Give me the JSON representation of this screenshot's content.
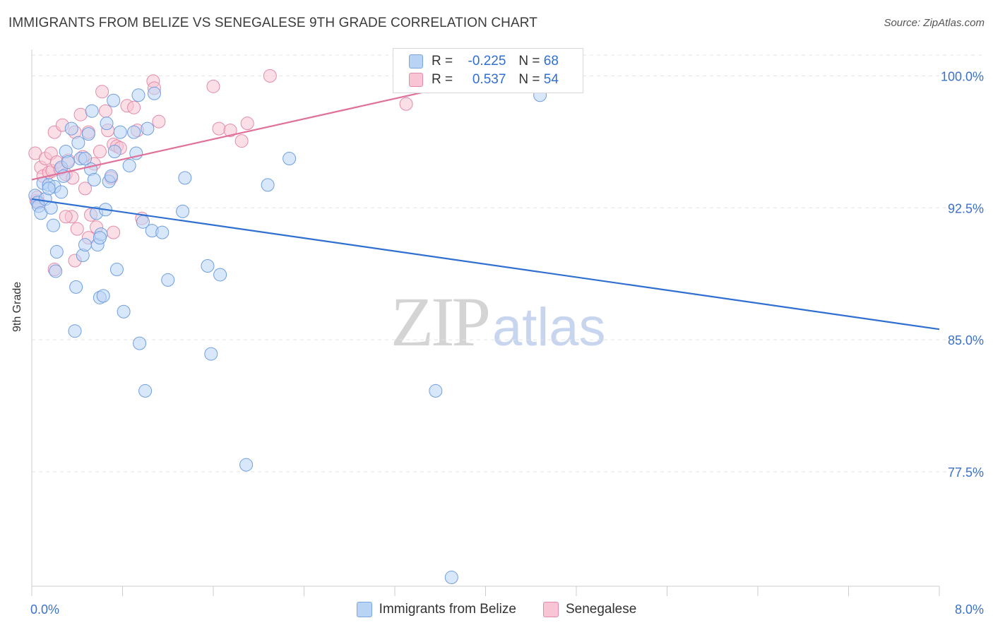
{
  "title": "IMMIGRANTS FROM BELIZE VS SENEGALESE 9TH GRADE CORRELATION CHART",
  "source": "Source: ZipAtlas.com",
  "watermark": {
    "zip": "ZIP",
    "atlas": "atlas"
  },
  "stats": [
    {
      "r_label": "R =",
      "r_value": "-0.225",
      "n_label": "N =",
      "n_value": "68"
    },
    {
      "r_label": "R =",
      "r_value": "0.537",
      "n_label": "N =",
      "n_value": "54"
    }
  ],
  "legend": [
    {
      "label": "Immigrants from Belize"
    },
    {
      "label": "Senegalese"
    }
  ],
  "colors": {
    "blue_fill": "#b9d3f5",
    "blue_stroke": "#6e9fe0",
    "blue_line": "#2f6fd1",
    "pink_fill": "#f7c5d4",
    "pink_stroke": "#e58aa8",
    "pink_line": "#e0719a",
    "tick_label": "#3b72c8",
    "grid": "#e3e3e3"
  },
  "chart_data": {
    "type": "scatter",
    "title": "IMMIGRANTS FROM BELIZE VS SENEGALESE 9TH GRADE CORRELATION CHART",
    "xlabel": "",
    "ylabel": "9th Grade",
    "xlim": [
      0,
      8.0
    ],
    "ylim": [
      71.0,
      101.5
    ],
    "x_tick_labels": [
      "0.0%",
      "8.0%"
    ],
    "y_ticks": [
      {
        "value": 100.0,
        "label": "100.0%"
      },
      {
        "value": 92.5,
        "label": "92.5%"
      },
      {
        "value": 85.0,
        "label": "85.0%"
      },
      {
        "value": 77.5,
        "label": "77.5%"
      }
    ],
    "series": [
      {
        "name": "Immigrants from Belize",
        "color": "blue",
        "trend": {
          "x": [
            0.0,
            8.0
          ],
          "y": [
            93.0,
            85.6
          ]
        },
        "points": [
          [
            0.03,
            93.2
          ],
          [
            0.05,
            92.8
          ],
          [
            0.06,
            92.6
          ],
          [
            0.08,
            92.2
          ],
          [
            0.1,
            93.9
          ],
          [
            0.12,
            93.0
          ],
          [
            0.15,
            93.8
          ],
          [
            0.17,
            92.5
          ],
          [
            0.19,
            91.5
          ],
          [
            0.2,
            93.7
          ],
          [
            0.21,
            88.9
          ],
          [
            0.22,
            90.0
          ],
          [
            0.26,
            94.8
          ],
          [
            0.26,
            93.4
          ],
          [
            0.28,
            94.3
          ],
          [
            0.3,
            95.7
          ],
          [
            0.32,
            95.1
          ],
          [
            0.35,
            97.0
          ],
          [
            0.38,
            85.5
          ],
          [
            0.39,
            88.0
          ],
          [
            0.41,
            96.2
          ],
          [
            0.43,
            95.3
          ],
          [
            0.45,
            89.8
          ],
          [
            0.47,
            90.4
          ],
          [
            0.5,
            96.7
          ],
          [
            0.52,
            94.7
          ],
          [
            0.53,
            98.0
          ],
          [
            0.55,
            94.1
          ],
          [
            0.57,
            92.2
          ],
          [
            0.58,
            90.4
          ],
          [
            0.6,
            87.4
          ],
          [
            0.61,
            91.0
          ],
          [
            0.63,
            87.5
          ],
          [
            0.65,
            92.4
          ],
          [
            0.66,
            97.3
          ],
          [
            0.68,
            94.0
          ],
          [
            0.7,
            94.3
          ],
          [
            0.72,
            98.6
          ],
          [
            0.73,
            95.7
          ],
          [
            0.75,
            89.0
          ],
          [
            0.78,
            96.8
          ],
          [
            0.81,
            86.6
          ],
          [
            0.86,
            94.9
          ],
          [
            0.9,
            96.8
          ],
          [
            0.92,
            95.6
          ],
          [
            0.94,
            98.9
          ],
          [
            0.95,
            84.8
          ],
          [
            0.98,
            91.7
          ],
          [
            1.0,
            82.1
          ],
          [
            1.02,
            97.0
          ],
          [
            1.06,
            91.2
          ],
          [
            1.08,
            99.0
          ],
          [
            1.15,
            91.1
          ],
          [
            1.2,
            88.4
          ],
          [
            1.33,
            92.3
          ],
          [
            1.35,
            94.2
          ],
          [
            1.55,
            89.2
          ],
          [
            1.58,
            84.2
          ],
          [
            1.66,
            88.7
          ],
          [
            1.89,
            77.9
          ],
          [
            2.08,
            93.8
          ],
          [
            2.27,
            95.3
          ],
          [
            3.56,
            82.1
          ],
          [
            3.7,
            71.5
          ],
          [
            4.48,
            98.9
          ],
          [
            0.6,
            90.8
          ],
          [
            0.47,
            95.3
          ],
          [
            0.15,
            93.6
          ]
        ]
      },
      {
        "name": "Senegalese",
        "color": "pink",
        "trend": {
          "x": [
            0.0,
            4.1
          ],
          "y": [
            94.1,
            100.0
          ]
        },
        "points": [
          [
            0.03,
            95.6
          ],
          [
            0.04,
            92.9
          ],
          [
            0.05,
            93.1
          ],
          [
            0.06,
            92.8
          ],
          [
            0.08,
            94.8
          ],
          [
            0.1,
            94.3
          ],
          [
            0.12,
            95.3
          ],
          [
            0.15,
            94.5
          ],
          [
            0.17,
            95.6
          ],
          [
            0.18,
            94.6
          ],
          [
            0.2,
            96.8
          ],
          [
            0.22,
            95.1
          ],
          [
            0.25,
            94.7
          ],
          [
            0.27,
            97.2
          ],
          [
            0.3,
            94.4
          ],
          [
            0.32,
            95.2
          ],
          [
            0.35,
            92.0
          ],
          [
            0.36,
            94.2
          ],
          [
            0.38,
            96.8
          ],
          [
            0.4,
            91.3
          ],
          [
            0.43,
            97.8
          ],
          [
            0.45,
            95.4
          ],
          [
            0.47,
            93.6
          ],
          [
            0.5,
            96.8
          ],
          [
            0.52,
            92.1
          ],
          [
            0.55,
            95.0
          ],
          [
            0.57,
            91.4
          ],
          [
            0.6,
            95.7
          ],
          [
            0.62,
            99.1
          ],
          [
            0.65,
            98.0
          ],
          [
            0.67,
            96.9
          ],
          [
            0.7,
            94.2
          ],
          [
            0.72,
            96.1
          ],
          [
            0.75,
            96.0
          ],
          [
            0.78,
            95.9
          ],
          [
            0.84,
            98.3
          ],
          [
            0.9,
            98.2
          ],
          [
            0.93,
            96.9
          ],
          [
            0.97,
            91.9
          ],
          [
            1.07,
            99.7
          ],
          [
            1.08,
            99.3
          ],
          [
            1.12,
            97.4
          ],
          [
            1.6,
            99.4
          ],
          [
            1.65,
            97.0
          ],
          [
            1.75,
            96.9
          ],
          [
            1.85,
            96.3
          ],
          [
            1.9,
            97.3
          ],
          [
            2.1,
            100.0
          ],
          [
            3.3,
            98.4
          ],
          [
            0.38,
            89.5
          ],
          [
            0.5,
            90.8
          ],
          [
            0.72,
            91.1
          ],
          [
            0.2,
            89.0
          ],
          [
            0.3,
            92.0
          ]
        ]
      }
    ]
  }
}
